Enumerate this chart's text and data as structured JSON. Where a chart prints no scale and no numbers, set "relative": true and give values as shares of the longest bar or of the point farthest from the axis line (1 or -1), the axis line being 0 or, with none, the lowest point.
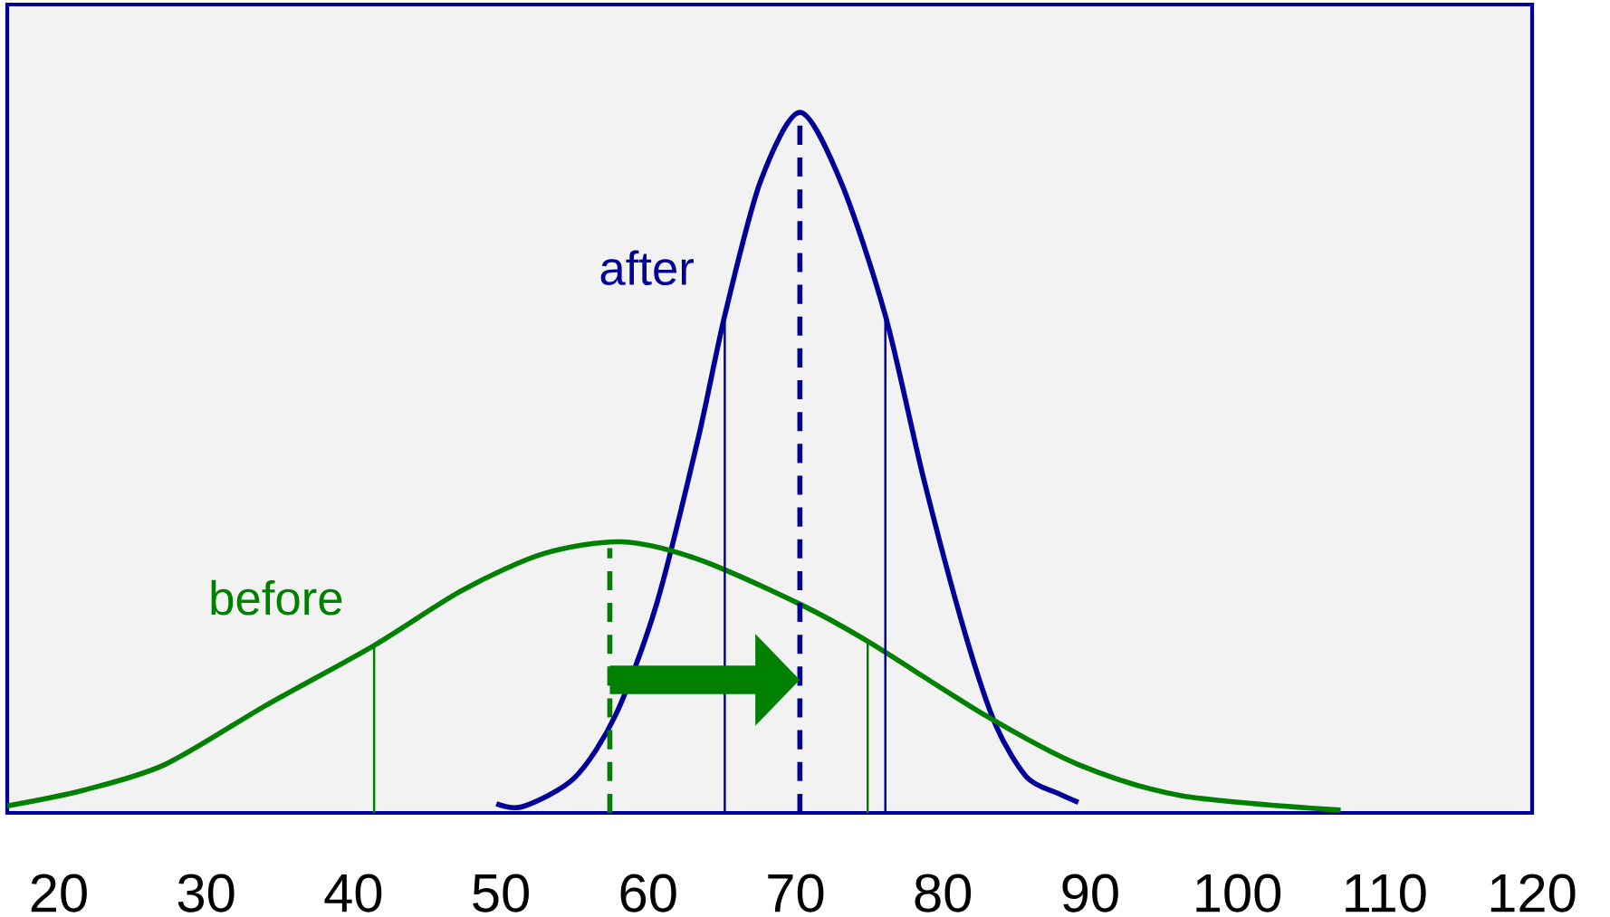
{
  "chart_data": {
    "type": "line",
    "relative": true,
    "xlim": [
      16.5,
      120
    ],
    "xticks": [
      20,
      30,
      40,
      50,
      60,
      70,
      80,
      90,
      100,
      110,
      120
    ],
    "grid": false,
    "marker": "none",
    "series": [
      {
        "name": "after",
        "color": "#000099",
        "x": [
          49.7,
          51.5,
          55.0,
          57.8,
          60.6,
          63.4,
          65.2,
          67.6,
          70.3,
          73.1,
          76.1,
          78.7,
          81.5,
          83.6,
          85.7,
          87.8,
          89.2
        ],
        "values": [
          0.013,
          0.009,
          0.05,
          0.14,
          0.3,
          0.535,
          0.71,
          0.9,
          1.0,
          0.9,
          0.71,
          0.477,
          0.257,
          0.125,
          0.051,
          0.028,
          0.015
        ]
      },
      {
        "name": "before",
        "color": "#008000",
        "x": [
          16.5,
          21.6,
          27.2,
          34.1,
          41.4,
          47.4,
          52.9,
          58.2,
          63.4,
          70.3,
          74.9,
          82.9,
          89.2,
          96.1,
          107.0
        ],
        "values": [
          0.01,
          0.032,
          0.069,
          0.154,
          0.239,
          0.318,
          0.37,
          0.387,
          0.362,
          0.298,
          0.245,
          0.139,
          0.069,
          0.025,
          0.004
        ]
      },
      {
        "color": "#000099",
        "line_style": "dashed",
        "x": [
          70.3,
          70.3
        ],
        "values": [
          0,
          1.0
        ]
      },
      {
        "color": "#008000",
        "line_style": "dashed",
        "x": [
          57.4,
          57.4
        ],
        "values": [
          0,
          0.378
        ]
      },
      {
        "color": "#000099",
        "x": [
          65.2,
          65.2
        ],
        "values": [
          0,
          0.71
        ]
      },
      {
        "color": "#000099",
        "x": [
          76.1,
          76.1
        ],
        "values": [
          0,
          0.71
        ]
      },
      {
        "color": "#008000",
        "x": [
          41.4,
          41.4
        ],
        "values": [
          0,
          0.239
        ]
      },
      {
        "color": "#008000",
        "x": [
          74.9,
          74.9
        ],
        "values": [
          0,
          0.245
        ]
      }
    ]
  }
}
